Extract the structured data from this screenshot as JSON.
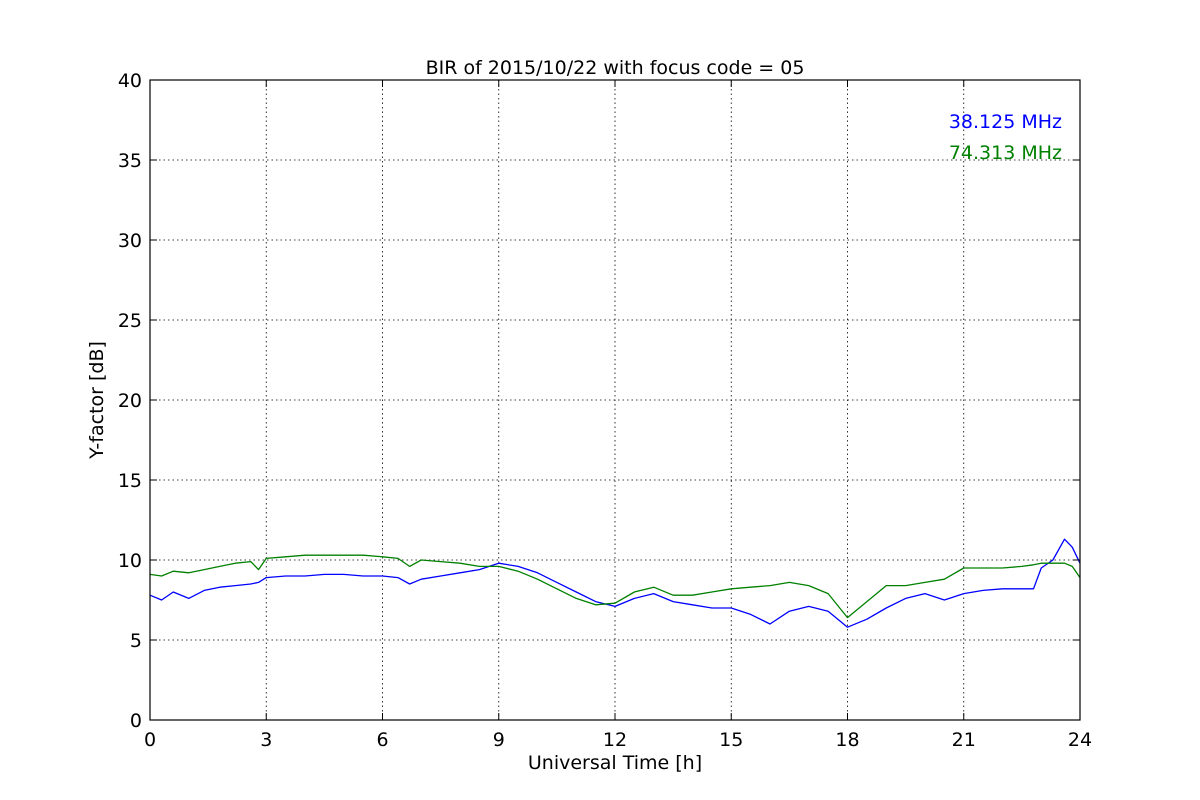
{
  "chart_data": {
    "type": "line",
    "title": "BIR of 2015/10/22 with focus code = 05",
    "xlabel": "Universal Time [h]",
    "ylabel": "Y-factor [dB]",
    "xlim": [
      0,
      24
    ],
    "ylim": [
      0,
      40
    ],
    "xticks": [
      0,
      3,
      6,
      9,
      12,
      15,
      18,
      21,
      24
    ],
    "yticks": [
      0,
      5,
      10,
      15,
      20,
      25,
      30,
      35,
      40
    ],
    "grid": true,
    "legend_placement": "top-right",
    "series": [
      {
        "name": "38.125 MHz",
        "color": "#0000ff",
        "x": [
          0,
          0.3,
          0.6,
          1.0,
          1.4,
          1.8,
          2.2,
          2.6,
          2.8,
          3.0,
          3.5,
          4.0,
          4.5,
          5.0,
          5.5,
          6.0,
          6.4,
          6.7,
          7.0,
          7.5,
          8.0,
          8.5,
          9.0,
          9.5,
          10.0,
          10.5,
          11.0,
          11.5,
          12.0,
          12.5,
          13.0,
          13.5,
          14.0,
          14.5,
          15.0,
          15.5,
          16.0,
          16.5,
          17.0,
          17.5,
          18.0,
          18.5,
          19.0,
          19.5,
          20.0,
          20.5,
          21.0,
          21.5,
          22.0,
          22.5,
          22.8,
          23.0,
          23.3,
          23.6,
          23.8,
          24.0
        ],
        "y": [
          7.8,
          7.5,
          8.0,
          7.6,
          8.1,
          8.3,
          8.4,
          8.5,
          8.6,
          8.9,
          9.0,
          9.0,
          9.1,
          9.1,
          9.0,
          9.0,
          8.9,
          8.5,
          8.8,
          9.0,
          9.2,
          9.4,
          9.8,
          9.6,
          9.2,
          8.6,
          8.0,
          7.4,
          7.1,
          7.6,
          7.9,
          7.4,
          7.2,
          7.0,
          7.0,
          6.6,
          6.0,
          6.8,
          7.1,
          6.8,
          5.8,
          6.3,
          7.0,
          7.6,
          7.9,
          7.5,
          7.9,
          8.1,
          8.2,
          8.2,
          8.2,
          9.5,
          10.0,
          11.3,
          10.8,
          9.8
        ]
      },
      {
        "name": "74.313 MHz",
        "color": "#008000",
        "x": [
          0,
          0.3,
          0.6,
          1.0,
          1.4,
          1.8,
          2.2,
          2.6,
          2.8,
          3.0,
          3.5,
          4.0,
          4.5,
          5.0,
          5.5,
          6.0,
          6.4,
          6.7,
          7.0,
          7.5,
          8.0,
          8.5,
          9.0,
          9.5,
          10.0,
          10.5,
          11.0,
          11.5,
          12.0,
          12.5,
          13.0,
          13.5,
          14.0,
          14.5,
          15.0,
          15.5,
          16.0,
          16.5,
          17.0,
          17.5,
          18.0,
          18.5,
          19.0,
          19.5,
          20.0,
          20.5,
          21.0,
          21.5,
          22.0,
          22.5,
          22.8,
          23.0,
          23.3,
          23.6,
          23.8,
          24.0
        ],
        "y": [
          9.1,
          9.0,
          9.3,
          9.2,
          9.4,
          9.6,
          9.8,
          9.9,
          9.4,
          10.1,
          10.2,
          10.3,
          10.3,
          10.3,
          10.3,
          10.2,
          10.1,
          9.6,
          10.0,
          9.9,
          9.8,
          9.6,
          9.6,
          9.3,
          8.8,
          8.2,
          7.6,
          7.2,
          7.3,
          8.0,
          8.3,
          7.8,
          7.8,
          8.0,
          8.2,
          8.3,
          8.4,
          8.6,
          8.4,
          7.9,
          6.4,
          7.4,
          8.4,
          8.4,
          8.6,
          8.8,
          9.5,
          9.5,
          9.5,
          9.6,
          9.7,
          9.8,
          9.8,
          9.8,
          9.6,
          8.9
        ]
      }
    ]
  }
}
